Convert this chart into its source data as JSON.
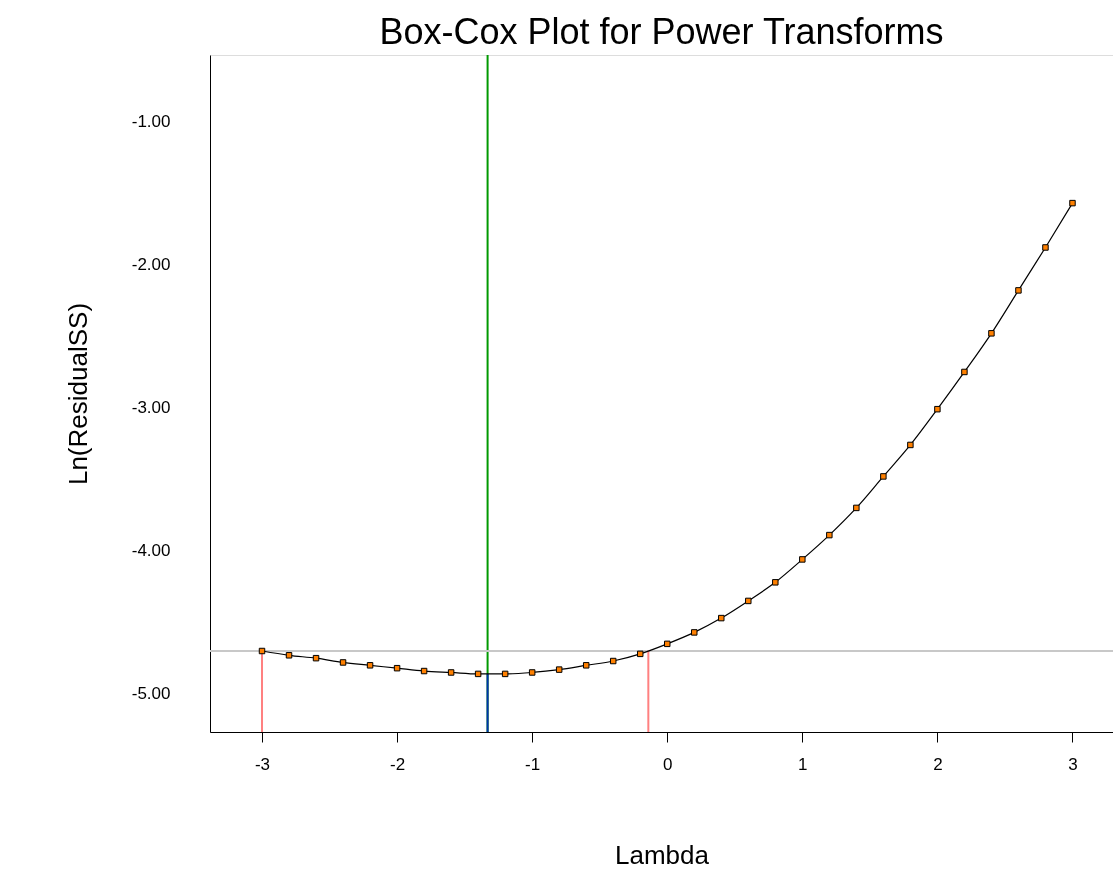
{
  "chart_data": {
    "type": "line",
    "title": "Box-Cox Plot for Power Transforms",
    "xlabel": "Lambda",
    "ylabel": "Ln(ResidualSS)",
    "x": [
      -3.0,
      -2.8,
      -2.6,
      -2.4,
      -2.2,
      -2.0,
      -1.8,
      -1.6,
      -1.4,
      -1.2,
      -1.0,
      -0.8,
      -0.6,
      -0.4,
      -0.2,
      0.0,
      0.2,
      0.4,
      0.6,
      0.8,
      1.0,
      1.2,
      1.4,
      1.6,
      1.8,
      2.0,
      2.2,
      2.4,
      2.6,
      2.8,
      3.0
    ],
    "series": [
      {
        "color": "#ff8000",
        "values": [
          -4.7,
          -4.73,
          -4.75,
          -4.78,
          -4.8,
          -4.82,
          -4.84,
          -4.85,
          -4.86,
          -4.86,
          -4.85,
          -4.83,
          -4.8,
          -4.77,
          -4.72,
          -4.65,
          -4.57,
          -4.47,
          -4.35,
          -4.22,
          -4.06,
          -3.89,
          -3.7,
          -3.48,
          -3.26,
          -3.01,
          -2.75,
          -2.48,
          -2.18,
          -1.88,
          -1.57
        ]
      }
    ],
    "marker": "square",
    "xlim": [
      -3.385,
      3.3
    ],
    "ylim": [
      -5.266,
      -0.535
    ],
    "xticks": [
      -3,
      -2,
      -1,
      0,
      1,
      2,
      3
    ],
    "yticks": [
      {
        "value": -1,
        "label": "-1.00"
      },
      {
        "value": -2,
        "label": "-2.00"
      },
      {
        "value": -3,
        "label": "-3.00"
      },
      {
        "value": -4,
        "label": "-4.00"
      },
      {
        "value": -5,
        "label": "-5.00"
      }
    ],
    "ref_lines": [
      {
        "axis": "x",
        "value": -1.33,
        "color": "#009900"
      },
      {
        "axis": "y",
        "value": -4.7,
        "color": "#c8c8c8"
      },
      {
        "axis": "x",
        "value": -1.33,
        "color": "#0033aa"
      },
      {
        "axis": "x",
        "value": -3.0,
        "color": "#ff8080"
      },
      {
        "axis": "x",
        "value": -0.14,
        "color": "#ff8080"
      }
    ],
    "grid": false
  }
}
